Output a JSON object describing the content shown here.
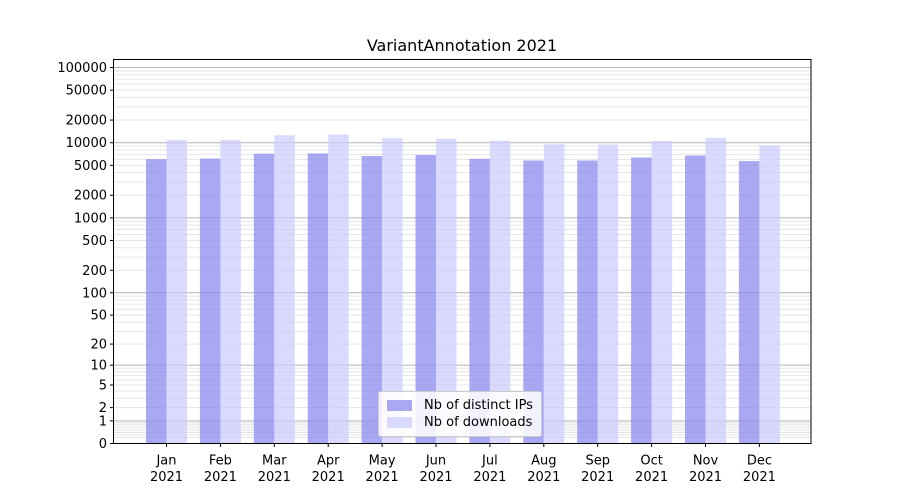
{
  "chart_data": {
    "type": "bar",
    "title": "VariantAnnotation 2021",
    "x_categories": [
      "Jan",
      "Feb",
      "Mar",
      "Apr",
      "May",
      "Jun",
      "Jul",
      "Aug",
      "Sep",
      "Oct",
      "Nov",
      "Dec"
    ],
    "x_sub_label": "2021",
    "y_scale": "log1p",
    "ylim": [
      0,
      130000
    ],
    "y_tick_labels": [
      100000,
      50000,
      20000,
      10000,
      5000,
      2000,
      1000,
      500,
      200,
      100,
      50,
      20,
      10,
      5,
      2,
      1,
      0
    ],
    "grid": {
      "major_color": "#b3b3b3",
      "minor_color": "#e5e5e5",
      "grid_on": true
    },
    "axis_color": "#000000",
    "legend_position": "lower center",
    "series": [
      {
        "name": "Nb of distinct IPs",
        "color": "#8888ee",
        "opacity": 0.72,
        "values": [
          6050,
          6150,
          7150,
          7200,
          6650,
          6850,
          6100,
          5800,
          5800,
          6350,
          6750,
          5700
        ]
      },
      {
        "name": "Nb of downloads",
        "color": "#ccccff",
        "opacity": 0.72,
        "values": [
          10900,
          10900,
          12550,
          12900,
          11500,
          11250,
          10650,
          9550,
          9450,
          10550,
          11600,
          9250
        ]
      }
    ]
  }
}
